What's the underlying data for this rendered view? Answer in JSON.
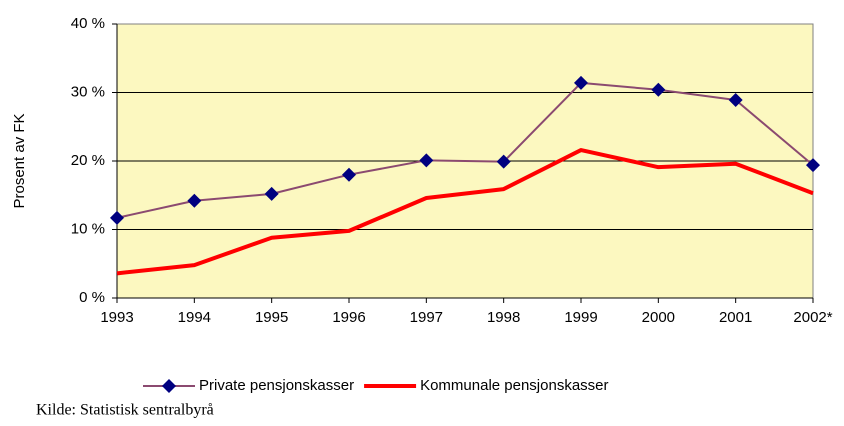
{
  "chart_data": {
    "type": "line",
    "y_label": "Prosent av FK",
    "categories": [
      "1993",
      "1994",
      "1995",
      "1996",
      "1997",
      "1998",
      "1999",
      "2000",
      "2001",
      "2002*"
    ],
    "series": [
      {
        "name": "Private pensjonskasser",
        "color": "#8b4a70",
        "marker": "diamond",
        "marker_color": "#000080",
        "values": [
          11.7,
          14.2,
          15.2,
          18.0,
          20.1,
          19.9,
          31.4,
          30.4,
          28.9,
          19.4
        ]
      },
      {
        "name": "Kommunale pensjonskasser",
        "color": "#ff0000",
        "values": [
          3.6,
          4.8,
          8.8,
          9.8,
          14.6,
          15.9,
          21.6,
          19.1,
          19.6,
          15.3
        ]
      }
    ],
    "ylim": [
      0,
      40
    ],
    "yticks": [
      {
        "value": 0,
        "label": "0 %"
      },
      {
        "value": 10,
        "label": "10 %"
      },
      {
        "value": 20,
        "label": "20 %"
      },
      {
        "value": 30,
        "label": "30 %"
      },
      {
        "value": 40,
        "label": "40 %"
      }
    ],
    "grid": true,
    "plot_background": "#fcf8c0",
    "legend": "bottom",
    "source": "Kilde: Statistisk sentralbyrå"
  }
}
